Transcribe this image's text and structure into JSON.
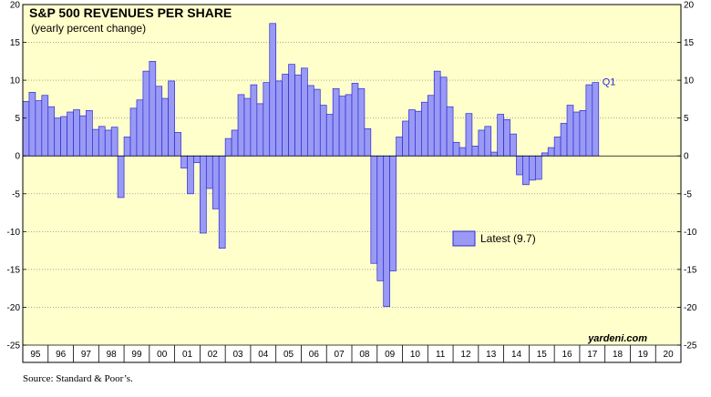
{
  "chart_data": {
    "type": "bar",
    "title": "S&P 500 REVENUES PER SHARE",
    "subtitle": "(yearly percent change)",
    "ylim": [
      -25,
      20
    ],
    "yticks": [
      -25,
      -20,
      -15,
      -10,
      -5,
      0,
      5,
      10,
      15,
      20
    ],
    "year_labels": [
      "95",
      "96",
      "97",
      "98",
      "99",
      "00",
      "01",
      "02",
      "03",
      "04",
      "05",
      "06",
      "07",
      "08",
      "09",
      "10",
      "11",
      "12",
      "13",
      "14",
      "15",
      "16",
      "17",
      "18",
      "19",
      "20"
    ],
    "frequency": "quarterly",
    "start": "1995 Q1",
    "values": [
      7.2,
      8.4,
      7.3,
      8.0,
      6.5,
      5.0,
      5.2,
      5.8,
      6.1,
      5.3,
      6.0,
      3.5,
      3.9,
      3.4,
      3.8,
      -5.5,
      2.5,
      6.3,
      7.4,
      11.2,
      12.5,
      9.2,
      7.6,
      9.9,
      3.1,
      -1.6,
      -5.0,
      -0.9,
      -10.2,
      -4.3,
      -7.0,
      -12.2,
      2.3,
      3.4,
      8.1,
      7.6,
      9.4,
      6.9,
      9.7,
      17.5,
      9.9,
      10.8,
      12.1,
      10.7,
      11.6,
      9.3,
      8.8,
      6.7,
      5.5,
      8.9,
      7.9,
      8.1,
      9.6,
      8.9,
      3.6,
      -14.2,
      -16.5,
      -19.9,
      -15.2,
      2.5,
      4.6,
      6.1,
      5.9,
      7.1,
      8.0,
      11.2,
      10.4,
      6.5,
      1.8,
      1.1,
      5.6,
      1.3,
      3.4,
      3.9,
      0.5,
      5.5,
      4.8,
      2.9,
      -2.5,
      -3.8,
      -3.2,
      -3.1,
      0.4,
      1.1,
      2.5,
      4.3,
      6.7,
      5.8,
      6.0,
      9.4,
      9.7
    ],
    "annotation": "Q1",
    "legend": {
      "label": "Latest (9.7)",
      "position": "center-right"
    },
    "brand": "yardeni.com",
    "colors": {
      "bar_fill": "#9a9af5",
      "bar_stroke": "#2b2bd6",
      "plot_bg": "#ffffcc",
      "annotation": "#2b2bd6"
    }
  },
  "source": "Source: Standard & Poor’s."
}
